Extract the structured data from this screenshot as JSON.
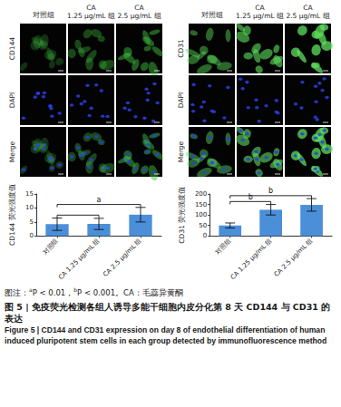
{
  "image_panels": [
    {
      "columns": [
        [
          "对照组"
        ],
        [
          "CA",
          "1.25 μg/mL 组"
        ],
        [
          "CA",
          "2.5 μg/mL 组"
        ]
      ],
      "rows": [
        "CD144",
        "DAPI",
        "Merge"
      ],
      "color": "#3fbf3f"
    },
    {
      "columns": [
        [
          "对照组"
        ],
        [
          "CA",
          "1.25 μg/mL 组"
        ],
        [
          "CA",
          "2.5 μg/mL 组"
        ]
      ],
      "rows": [
        "CD31",
        "DAPI",
        "Merge"
      ],
      "color": "#5ee05e"
    }
  ],
  "chart_data": [
    {
      "type": "bar",
      "categories": [
        "对照组",
        "CA 1.25 μg/mL 组",
        "CA 2.5 μg/mL 组"
      ],
      "values": [
        4.2,
        4.3,
        7.6
      ],
      "errors": [
        2.2,
        2.0,
        2.6
      ],
      "color": "#4a8fd8",
      "ylabel": "CD144 荧光强度值",
      "ylim": [
        0,
        15
      ],
      "yticks": [
        0,
        5,
        10,
        15
      ],
      "grid": false,
      "significance": [
        {
          "between": [
            "对照组",
            "CA 1.25 μg/mL 组"
          ]
        },
        {
          "between": [
            "对照组",
            "CA 2.5 μg/mL 组"
          ],
          "label": "a"
        }
      ]
    },
    {
      "type": "bar",
      "categories": [
        "对照组",
        "CA 1.25 μg/mL 组",
        "CA 2.5 μg/mL 组"
      ],
      "values": [
        50,
        125,
        148
      ],
      "errors": [
        12,
        25,
        30
      ],
      "color": "#4a8fd8",
      "ylabel": "CD31 荧光强度值",
      "ylim": [
        0,
        200
      ],
      "yticks": [
        0,
        50,
        100,
        150,
        200
      ],
      "grid": false,
      "significance": [
        {
          "between": [
            "对照组",
            "CA 1.25 μg/mL 组"
          ],
          "label": "b"
        },
        {
          "between": [
            "对照组",
            "CA 2.5 μg/mL 组"
          ],
          "label": "b"
        }
      ]
    }
  ],
  "caption": {
    "note": [
      {
        "text": "图注："
      },
      {
        "sup": "a"
      },
      {
        "text": "P < 0.01，"
      },
      {
        "sup": "b"
      },
      {
        "text": "P < 0.001。CA：毛蕊异黄酮"
      }
    ],
    "title_zh": "图 5 | 免疫荧光检测各组人诱导多能干细胞内皮分化第 8 天 CD144 与 CD31 的表达",
    "title_en": "Figure 5 | CD144 and CD31 expression on day 8 of endothelial differentiation of human induced pluripotent stem cells in each group detected by immunofluorescence method"
  }
}
